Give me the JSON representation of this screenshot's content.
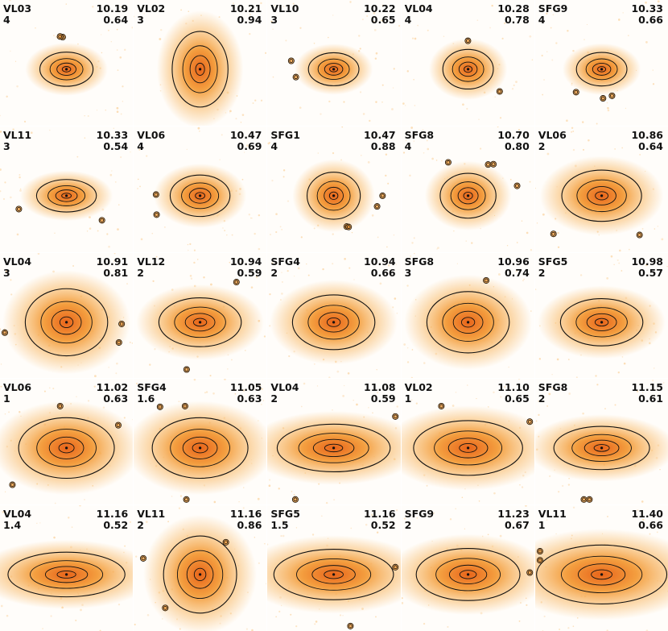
{
  "colors": {
    "background": "#ffffff",
    "inner": "#e8641a",
    "mid": "#f39a36",
    "outer": "#f9c27a",
    "contour": "#111111"
  },
  "panels": [
    {
      "name": "VL03",
      "n": "4",
      "mass": "10.19",
      "axis": "0.64",
      "size": 0.4,
      "aspect": 0.64,
      "companions": 2
    },
    {
      "name": "VL02",
      "n": "3",
      "mass": "10.21",
      "axis": "0.94",
      "size": 0.42,
      "aspect": 1.35,
      "companions": 0
    },
    {
      "name": "VL10",
      "n": "3",
      "mass": "10.22",
      "axis": "0.65",
      "size": 0.38,
      "aspect": 0.65,
      "companions": 2
    },
    {
      "name": "VL04",
      "n": "4",
      "mass": "10.28",
      "axis": "0.78",
      "size": 0.38,
      "aspect": 0.78,
      "companions": 2
    },
    {
      "name": "SFG9",
      "n": "4",
      "mass": "10.33",
      "axis": "0.66",
      "size": 0.38,
      "aspect": 0.66,
      "companions": 3
    },
    {
      "name": "VL11",
      "n": "3",
      "mass": "10.33",
      "axis": "0.54",
      "size": 0.45,
      "aspect": 0.54,
      "companions": 2
    },
    {
      "name": "VL06",
      "n": "4",
      "mass": "10.47",
      "axis": "0.69",
      "size": 0.45,
      "aspect": 0.69,
      "companions": 2
    },
    {
      "name": "SFG1",
      "n": "4",
      "mass": "10.47",
      "axis": "0.88",
      "size": 0.4,
      "aspect": 0.88,
      "companions": 4
    },
    {
      "name": "SFG8",
      "n": "4",
      "mass": "10.70",
      "axis": "0.80",
      "size": 0.42,
      "aspect": 0.8,
      "companions": 4
    },
    {
      "name": "VL06",
      "n": "2",
      "mass": "10.86",
      "axis": "0.64",
      "size": 0.6,
      "aspect": 0.64,
      "companions": 2
    },
    {
      "name": "VL04",
      "n": "3",
      "mass": "10.91",
      "axis": "0.81",
      "size": 0.62,
      "aspect": 0.81,
      "companions": 3
    },
    {
      "name": "VL12",
      "n": "2",
      "mass": "10.94",
      "axis": "0.59",
      "size": 0.62,
      "aspect": 0.59,
      "companions": 2
    },
    {
      "name": "SFG4",
      "n": "2",
      "mass": "10.94",
      "axis": "0.66",
      "size": 0.62,
      "aspect": 0.66,
      "companions": 0
    },
    {
      "name": "SFG8",
      "n": "3",
      "mass": "10.96",
      "axis": "0.74",
      "size": 0.62,
      "aspect": 0.74,
      "companions": 1
    },
    {
      "name": "SFG5",
      "n": "2",
      "mass": "10.98",
      "axis": "0.57",
      "size": 0.62,
      "aspect": 0.57,
      "companions": 0
    },
    {
      "name": "VL06",
      "n": "1",
      "mass": "11.02",
      "axis": "0.63",
      "size": 0.72,
      "aspect": 0.63,
      "companions": 3
    },
    {
      "name": "SFG4",
      "n": "1.6",
      "mass": "11.05",
      "axis": "0.63",
      "size": 0.72,
      "aspect": 0.63,
      "companions": 3
    },
    {
      "name": "VL04",
      "n": "2",
      "mass": "11.08",
      "axis": "0.59",
      "size": 0.85,
      "aspect": 0.42,
      "companions": 2
    },
    {
      "name": "VL02",
      "n": "1",
      "mass": "11.10",
      "axis": "0.65",
      "size": 0.82,
      "aspect": 0.5,
      "companions": 2
    },
    {
      "name": "SFG8",
      "n": "2",
      "mass": "11.15",
      "axis": "0.61",
      "size": 0.72,
      "aspect": 0.45,
      "companions": 2
    },
    {
      "name": "VL04",
      "n": "1.4",
      "mass": "11.16",
      "axis": "0.52",
      "size": 0.88,
      "aspect": 0.38,
      "companions": 0
    },
    {
      "name": "VL11",
      "n": "2",
      "mass": "11.16",
      "axis": "0.86",
      "size": 0.55,
      "aspect": 1.05,
      "companions": 3
    },
    {
      "name": "SFG5",
      "n": "1.5",
      "mass": "11.16",
      "axis": "0.52",
      "size": 0.9,
      "aspect": 0.42,
      "companions": 2
    },
    {
      "name": "SFG9",
      "n": "2",
      "mass": "11.23",
      "axis": "0.67",
      "size": 0.78,
      "aspect": 0.5,
      "companions": 1
    },
    {
      "name": "VL11",
      "n": "1",
      "mass": "11.40",
      "axis": "0.66",
      "size": 0.98,
      "aspect": 0.45,
      "companions": 2
    }
  ]
}
